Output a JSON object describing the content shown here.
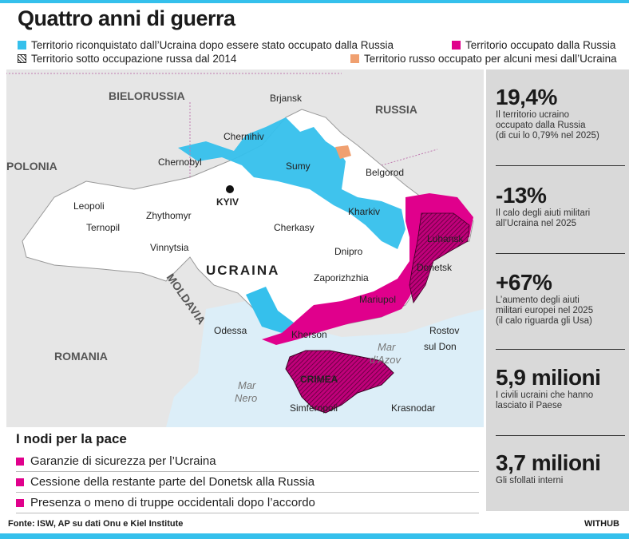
{
  "colors": {
    "accent_cyan": "#35c0ec",
    "occupied_magenta": "#e0008c",
    "orange": "#f0a070",
    "sea": "#dceef8",
    "panel_gray": "#d9d9d9"
  },
  "title": "Quattro anni di guerra",
  "legend": {
    "reconquered": "Territorio riconquistato dall’Ucraina dopo essere stato occupato dalla Russia",
    "occupied": "Territorio occupato dalla Russia",
    "since_2014": "Territorio sotto occupazione russa dal 2014",
    "russian_occupied": "Territorio russo occupato per alcuni mesi dall’Ucraina"
  },
  "map": {
    "countries": [
      "BIELORUSSIA",
      "RUSSIA",
      "POLONIA",
      "MOLDAVIA",
      "ROMANIA",
      "UCRAINA"
    ],
    "cities": [
      "Brjansk",
      "Chernihiv",
      "Chernobyl",
      "Sumy",
      "Belgorod",
      "KYIV",
      "Leopoli",
      "Ternopil",
      "Zhythomyr",
      "Vinnytsia",
      "Cherkasy",
      "Kharkiv",
      "Luhansk",
      "Donetsk",
      "Dnipro",
      "Zaporizhzhia",
      "Mariupol",
      "Odessa",
      "Kherson",
      "Rostov",
      "sul Don",
      "CRIMEA",
      "Simferopoli",
      "Krasnodar"
    ],
    "seas": [
      "Mar",
      "d’Azov",
      "Mar",
      "Nero"
    ]
  },
  "stats": [
    {
      "value": "19,4%",
      "desc": [
        "Il territorio ucraino",
        "occupato dalla Russia",
        "(di cui lo 0,79% nel 2025)"
      ]
    },
    {
      "value": "-13%",
      "desc": [
        "Il calo degli aiuti militari",
        "all’Ucraina nel 2025"
      ]
    },
    {
      "value": "+67%",
      "desc": [
        "L’aumento degli aiuti",
        "militari europei nel 2025",
        "(il calo riguarda gli Usa)"
      ]
    },
    {
      "value": "5,9 milioni",
      "desc": [
        "I civili ucraini che hanno",
        "lasciato il Paese"
      ]
    },
    {
      "value": "3,7 milioni",
      "desc": [
        "Gli sfollati interni"
      ]
    }
  ],
  "nodi": {
    "title": "I nodi per la pace",
    "items": [
      "Garanzie di sicurezza per l’Ucraina",
      "Cessione della restante parte del Donetsk alla Russia",
      "Presenza o meno di truppe occidentali dopo l’accordo"
    ]
  },
  "footer": "Fonte: ISW, AP su dati Onu e Kiel Institute",
  "brand": "WITHUB"
}
